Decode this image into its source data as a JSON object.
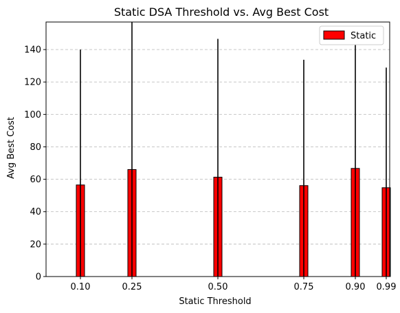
{
  "chart_data": {
    "type": "bar",
    "title": "Static DSA Threshold vs. Avg Best Cost",
    "xlabel": "Static Threshold",
    "ylabel": "Avg Best Cost",
    "x": [
      0.1,
      0.25,
      0.5,
      0.75,
      0.9,
      0.99
    ],
    "x_tick_labels": [
      "0.10",
      "0.25",
      "0.50",
      "0.75",
      "0.90",
      "0.99"
    ],
    "xlim": [
      0.0,
      1.0
    ],
    "ylim": [
      0,
      157
    ],
    "y_ticks": [
      0,
      20,
      40,
      60,
      80,
      100,
      120,
      140
    ],
    "y_tick_labels": [
      "0",
      "20",
      "40",
      "60",
      "80",
      "100",
      "120",
      "140"
    ],
    "series": [
      {
        "name": "Static",
        "values": [
          56.5,
          66,
          61.3,
          56.1,
          66.7,
          54.8
        ],
        "error_upper": [
          140,
          157,
          146.6,
          133.7,
          149,
          128.9
        ]
      }
    ],
    "bar_color": "#ff0000",
    "bar_edge_color": "#000000",
    "error_bar_color": "#000000",
    "grid": "y-dashed",
    "legend_position": "top-right"
  }
}
